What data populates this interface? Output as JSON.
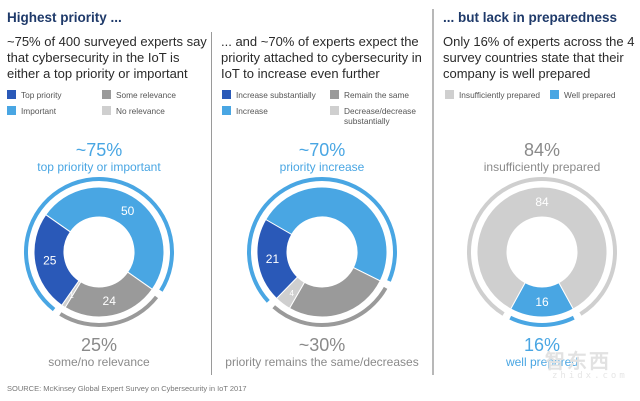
{
  "colors": {
    "dark_blue": "#2a59b8",
    "light_blue": "#49a6e3",
    "mid_gray": "#9a9a9a",
    "light_gray": "#cfcfcf",
    "heading": "#1f3a6a"
  },
  "panels": [
    {
      "heading": "Highest priority ...",
      "description": "~75% of 400 surveyed experts say that cybersecurity in the IoT is either a top priority or important",
      "legend": [
        {
          "label": "Top priority",
          "color": "#2a59b8"
        },
        {
          "label": "Important",
          "color": "#49a6e3"
        },
        {
          "label": "Some relevance",
          "color": "#9a9a9a"
        },
        {
          "label": "No relevance",
          "color": "#cfcfcf"
        }
      ],
      "top_value": "~75%",
      "top_caption": "top priority or important",
      "bottom_value": "25%",
      "bottom_caption": "some/no relevance"
    },
    {
      "heading": "",
      "description": "... and ~70% of experts expect the priority attached to cybersecurity in IoT to increase even further",
      "legend": [
        {
          "label": "Increase substantially",
          "color": "#2a59b8"
        },
        {
          "label": "Increase",
          "color": "#49a6e3"
        },
        {
          "label": "Remain the same",
          "color": "#9a9a9a"
        },
        {
          "label": "Decrease/decrease substantially",
          "color": "#cfcfcf"
        }
      ],
      "top_value": "~70%",
      "top_caption": "priority increase",
      "bottom_value": "~30%",
      "bottom_caption": "priority remains the same/decreases"
    },
    {
      "heading": "... but lack in preparedness",
      "description": "Only 16% of experts across the 4 survey countries state that their company is well prepared",
      "legend": [
        {
          "label": "Insufficiently prepared",
          "color": "#cfcfcf"
        },
        {
          "label": "Well prepared",
          "color": "#49a6e3"
        }
      ],
      "top_value": "84%",
      "top_caption": "insufficiently prepared",
      "bottom_value": "16%",
      "bottom_caption": "well prepared"
    }
  ],
  "source": "SOURCE: McKinsey Global Expert Survey on Cybersecurity in IoT 2017",
  "watermark": {
    "text": "智东西",
    "sub": "zhidx.com"
  },
  "chart_data": [
    {
      "type": "pie",
      "title": "Highest priority ...",
      "categories": [
        "Important",
        "Some relevance",
        "No relevance",
        "Top priority"
      ],
      "values": [
        50,
        24,
        1,
        25
      ],
      "value_labels": [
        "50",
        "24",
        "1",
        "25"
      ],
      "colors": [
        "#49a6e3",
        "#9a9a9a",
        "#cfcfcf",
        "#2a59b8"
      ],
      "start_angle_deg": -55,
      "outer_ring": [
        {
          "label": "top priority or important",
          "value": 75,
          "color": "#49a6e3"
        },
        {
          "label": "some/no relevance",
          "value": 25,
          "color": "#9a9a9a"
        }
      ]
    },
    {
      "type": "pie",
      "title": "... and ~70% of experts expect the priority attached to cybersecurity in IoT to increase even further",
      "categories": [
        "Increase",
        "Remain the same",
        "Decrease/decrease substantially",
        "Increase substantially"
      ],
      "values": [
        49,
        26,
        4,
        21
      ],
      "value_labels": [
        "",
        "",
        "4",
        "21"
      ],
      "colors": [
        "#49a6e3",
        "#9a9a9a",
        "#cfcfcf",
        "#2a59b8"
      ],
      "start_angle_deg": -60,
      "outer_ring": [
        {
          "label": "priority increase",
          "value": 70,
          "color": "#49a6e3"
        },
        {
          "label": "priority remains the same/decreases",
          "value": 30,
          "color": "#9a9a9a"
        }
      ]
    },
    {
      "type": "pie",
      "title": "... but lack in preparedness",
      "categories": [
        "Well prepared",
        "Insufficiently prepared"
      ],
      "values": [
        16,
        84
      ],
      "value_labels": [
        "16",
        "84"
      ],
      "colors": [
        "#49a6e3",
        "#cfcfcf"
      ],
      "start_angle_deg": 151.2,
      "outer_ring": [
        {
          "label": "well prepared",
          "value": 16,
          "color": "#49a6e3"
        },
        {
          "label": "insufficiently prepared",
          "value": 84,
          "color": "#cfcfcf"
        }
      ]
    }
  ]
}
